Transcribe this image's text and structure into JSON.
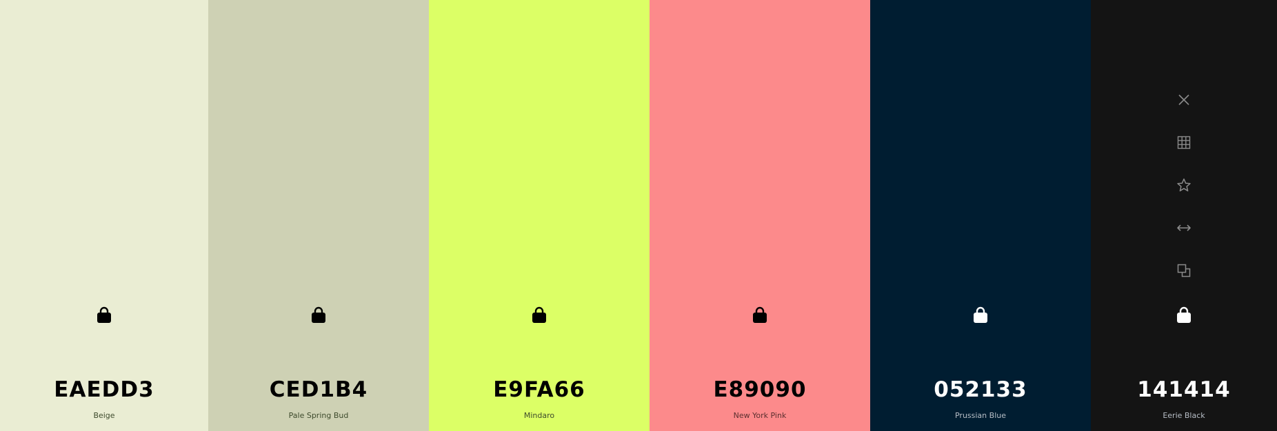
{
  "colors": [
    {
      "hex": "EAEDD3",
      "name": "Beige",
      "bg": "#EAEDD3",
      "text_theme": "dark",
      "lock_color": "#000000"
    },
    {
      "hex": "CED1B4",
      "name": "Pale Spring Bud",
      "bg": "#CED1B4",
      "text_theme": "dark",
      "lock_color": "#000000"
    },
    {
      "hex": "E9FA66",
      "name": "Mindaro",
      "bg": "#DCFF66",
      "text_theme": "dark",
      "lock_color": "#000000"
    },
    {
      "hex": "E89090",
      "name": "New York Pink",
      "bg": "#FC8A8B",
      "text_theme": "dark",
      "lock_color": "#000000"
    },
    {
      "hex": "052133",
      "name": "Prussian Blue",
      "bg": "#001D31",
      "text_theme": "light",
      "lock_color": "#FFFFFF"
    },
    {
      "hex": "141414",
      "name": "Eerie Black",
      "bg": "#141414",
      "text_theme": "light",
      "lock_color": "#FFFFFF"
    }
  ],
  "toolbar": {
    "icons": [
      "close-icon",
      "grid-icon",
      "star-icon",
      "arrows-horizontal-icon",
      "copy-icon"
    ],
    "icon_color": "#8b8b8b"
  }
}
